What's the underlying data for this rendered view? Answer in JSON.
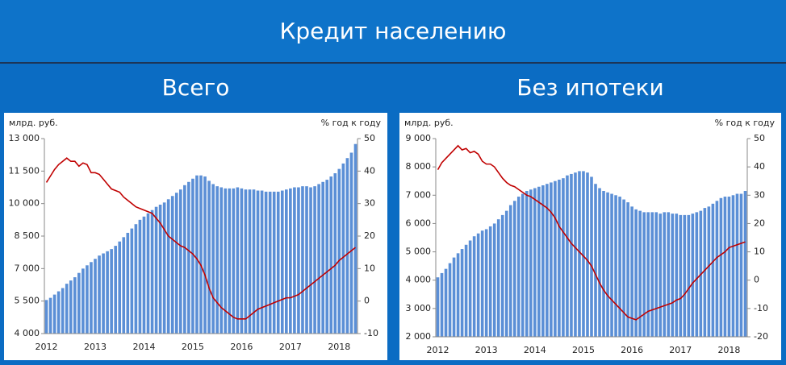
{
  "header": {
    "title": "Кредит населению"
  },
  "chart_data": [
    {
      "type": "combo",
      "title": "Всего",
      "ylabel": "млрд. руб.",
      "y2label": "% год к году",
      "categories": [
        "2012",
        null,
        null,
        null,
        null,
        null,
        null,
        null,
        null,
        null,
        null,
        null,
        "2013",
        null,
        null,
        null,
        null,
        null,
        null,
        null,
        null,
        null,
        null,
        null,
        "2014",
        null,
        null,
        null,
        null,
        null,
        null,
        null,
        null,
        null,
        null,
        null,
        "2015",
        null,
        null,
        null,
        null,
        null,
        null,
        null,
        null,
        null,
        null,
        null,
        "2016",
        null,
        null,
        null,
        null,
        null,
        null,
        null,
        null,
        null,
        null,
        null,
        "2017",
        null,
        null,
        null,
        null,
        null,
        null,
        null,
        null,
        null,
        null,
        null,
        "2018",
        null,
        null,
        null,
        null
      ],
      "ylim": [
        4000,
        13000
      ],
      "yticks": [
        {
          "value": 4000,
          "label": "4 000"
        },
        {
          "value": 5500,
          "label": "5 500"
        },
        {
          "value": 7000,
          "label": "7 000"
        },
        {
          "value": 8500,
          "label": "8 500"
        },
        {
          "value": 10000,
          "label": "10 000"
        },
        {
          "value": 11500,
          "label": "11 500"
        },
        {
          "value": 13000,
          "label": "13 000"
        }
      ],
      "y2lim": [
        -10,
        50
      ],
      "y2ticks": [
        -10,
        0,
        10,
        20,
        30,
        40,
        50
      ],
      "series": [
        {
          "type": "bar",
          "color": "#5b8fd6",
          "values": [
            5550,
            5650,
            5800,
            5950,
            6100,
            6300,
            6450,
            6600,
            6800,
            7000,
            7150,
            7300,
            7450,
            7600,
            7700,
            7800,
            7900,
            8050,
            8250,
            8450,
            8650,
            8850,
            9050,
            9250,
            9400,
            9550,
            9700,
            9850,
            9950,
            10050,
            10200,
            10350,
            10500,
            10650,
            10850,
            11000,
            11150,
            11300,
            11300,
            11250,
            11050,
            10900,
            10800,
            10750,
            10700,
            10700,
            10700,
            10750,
            10700,
            10650,
            10650,
            10650,
            10600,
            10600,
            10550,
            10550,
            10550,
            10550,
            10600,
            10650,
            10700,
            10750,
            10750,
            10800,
            10800,
            10750,
            10800,
            10900,
            11000,
            11100,
            11250,
            11400,
            11600,
            11850,
            12100,
            12350,
            12750
          ]
        },
        {
          "type": "line",
          "axis": "y2",
          "color": "#c00000",
          "values": [
            36.5,
            38.5,
            40.5,
            42,
            43,
            44,
            43,
            43,
            41.5,
            42.5,
            42,
            39.5,
            39.5,
            39,
            37.5,
            36,
            34.5,
            34,
            33.5,
            32,
            31,
            30,
            29,
            28.5,
            28,
            27.5,
            27,
            25.5,
            24,
            22,
            20,
            19,
            18,
            17,
            16.5,
            15.5,
            14.5,
            13,
            11,
            8,
            4,
            1,
            -0.5,
            -2,
            -3,
            -4,
            -5,
            -5.5,
            -5.5,
            -5.5,
            -4.5,
            -3.5,
            -2.5,
            -2,
            -1.5,
            -1,
            -0.5,
            0,
            0.5,
            1,
            1,
            1.5,
            2,
            3,
            4,
            5,
            6,
            7,
            8,
            9,
            10,
            11,
            12.5,
            13.5,
            14.5,
            15.5,
            16.5
          ]
        }
      ]
    },
    {
      "type": "combo",
      "title": "Без ипотеки",
      "ylabel": "млрд. руб.",
      "y2label": "% год к году",
      "categories": [
        "2012",
        null,
        null,
        null,
        null,
        null,
        null,
        null,
        null,
        null,
        null,
        null,
        "2013",
        null,
        null,
        null,
        null,
        null,
        null,
        null,
        null,
        null,
        null,
        null,
        "2014",
        null,
        null,
        null,
        null,
        null,
        null,
        null,
        null,
        null,
        null,
        null,
        "2015",
        null,
        null,
        null,
        null,
        null,
        null,
        null,
        null,
        null,
        null,
        null,
        "2016",
        null,
        null,
        null,
        null,
        null,
        null,
        null,
        null,
        null,
        null,
        null,
        "2017",
        null,
        null,
        null,
        null,
        null,
        null,
        null,
        null,
        null,
        null,
        null,
        "2018",
        null,
        null,
        null,
        null
      ],
      "ylim": [
        2000,
        9000
      ],
      "yticks": [
        {
          "value": 2000,
          "label": "2 000"
        },
        {
          "value": 3000,
          "label": "3 000"
        },
        {
          "value": 4000,
          "label": "4 000"
        },
        {
          "value": 5000,
          "label": "5 000"
        },
        {
          "value": 6000,
          "label": "6 000"
        },
        {
          "value": 7000,
          "label": "7 000"
        },
        {
          "value": 8000,
          "label": "8 000"
        },
        {
          "value": 9000,
          "label": "9 000"
        }
      ],
      "y2lim": [
        -20,
        50
      ],
      "y2ticks": [
        -20,
        -10,
        0,
        10,
        20,
        30,
        40,
        50
      ],
      "series": [
        {
          "type": "bar",
          "color": "#5b8fd6",
          "values": [
            4100,
            4250,
            4400,
            4600,
            4800,
            4950,
            5100,
            5250,
            5400,
            5550,
            5650,
            5750,
            5800,
            5900,
            6000,
            6150,
            6300,
            6450,
            6650,
            6800,
            6950,
            7050,
            7150,
            7200,
            7250,
            7300,
            7350,
            7400,
            7450,
            7500,
            7550,
            7600,
            7700,
            7750,
            7800,
            7850,
            7850,
            7800,
            7650,
            7400,
            7250,
            7150,
            7100,
            7050,
            7000,
            6950,
            6850,
            6750,
            6600,
            6500,
            6450,
            6400,
            6400,
            6400,
            6400,
            6350,
            6400,
            6400,
            6350,
            6350,
            6300,
            6300,
            6300,
            6350,
            6400,
            6450,
            6550,
            6600,
            6700,
            6800,
            6900,
            6950,
            6950,
            7000,
            7050,
            7050,
            7150
          ]
        },
        {
          "type": "line",
          "axis": "y2",
          "color": "#c00000",
          "values": [
            39,
            41.5,
            43,
            44.5,
            46,
            47.5,
            46,
            46.5,
            45,
            45.5,
            44.5,
            42,
            41,
            41,
            40,
            38,
            36,
            34.5,
            33.5,
            33,
            32,
            31,
            30,
            29.5,
            28.5,
            27.5,
            26.5,
            25.5,
            24,
            22,
            19,
            17,
            15,
            13,
            11.5,
            10,
            8.5,
            7,
            5,
            2,
            -1,
            -3.5,
            -5.5,
            -7,
            -8.5,
            -10,
            -11.5,
            -13,
            -13.5,
            -14,
            -13,
            -12,
            -11,
            -10.5,
            -10,
            -9.5,
            -9,
            -8.5,
            -8,
            -7,
            -6.5,
            -5,
            -3,
            -1,
            0.5,
            2,
            3.5,
            5,
            6.5,
            8,
            9,
            10,
            11.5,
            12,
            12.5,
            13,
            13.5
          ]
        }
      ]
    }
  ]
}
